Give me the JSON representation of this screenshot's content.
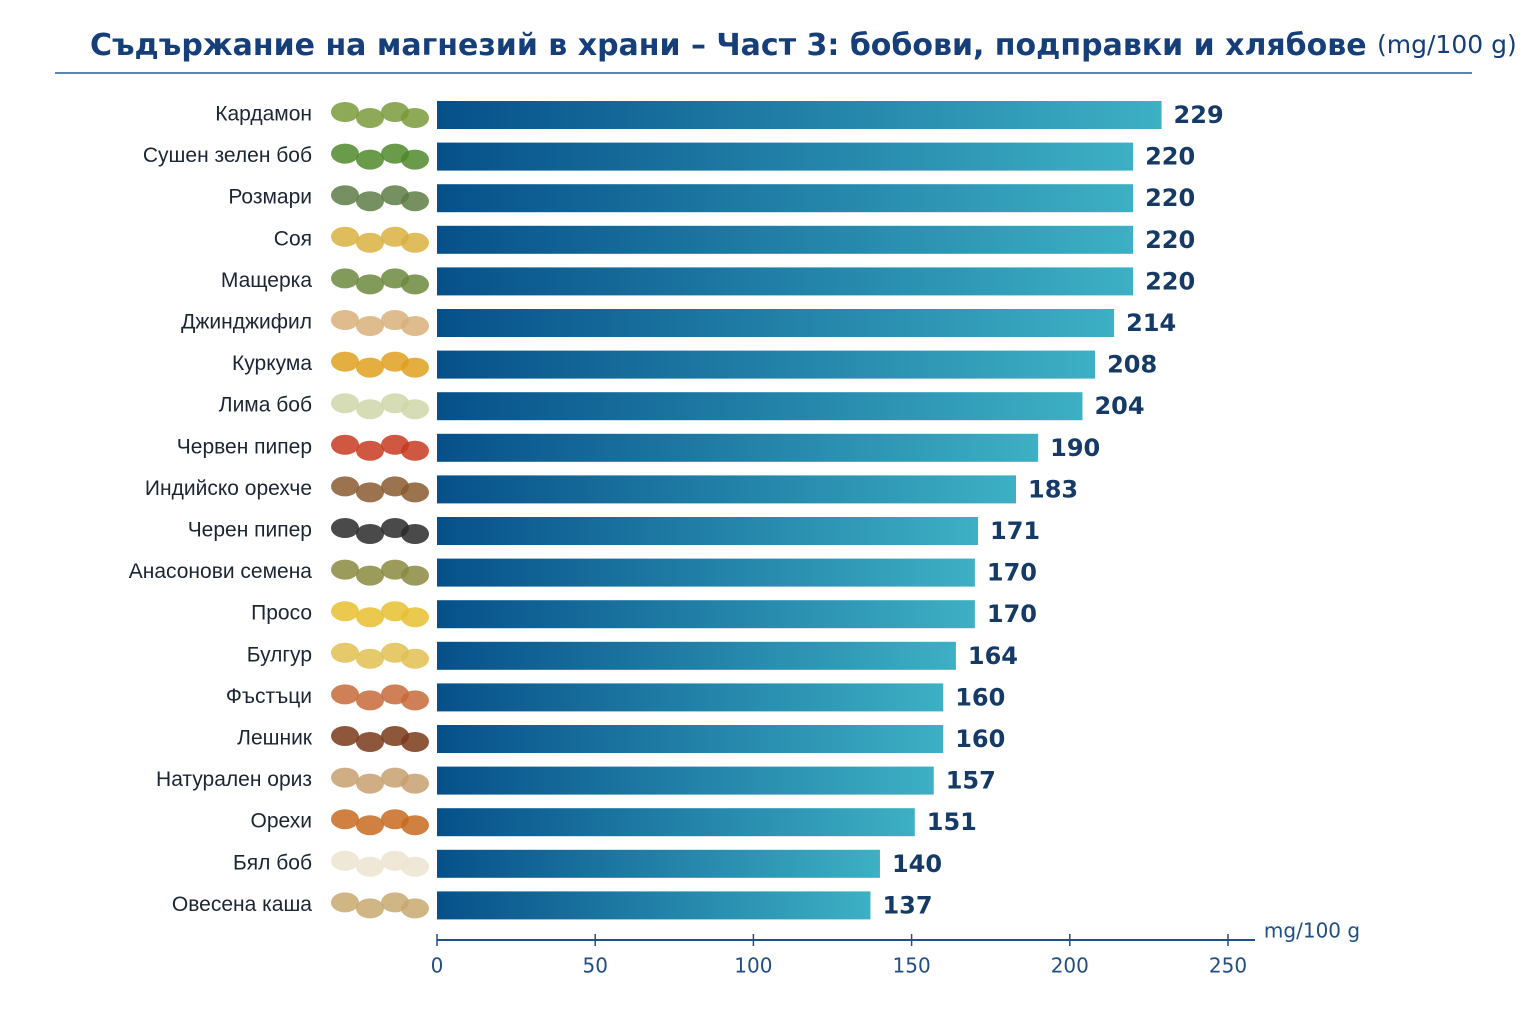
{
  "chart_data": {
    "type": "hbar",
    "title": "Съдържание на магнезий в храни – Част 3: бобови, подправки и хлябове",
    "title_unit": "(mg/100 g)",
    "x_label": "mg/100 g",
    "categories": [
      "Кардамон",
      "Сушен зелен боб",
      "Розмари",
      "Соя",
      "Мащерка",
      "Джинджифил",
      "Куркума",
      "Лима боб",
      "Червен пипер",
      "Индийско орехче",
      "Черен пипер",
      "Анасонови семена",
      "Просо",
      "Булгур",
      "Фъстъци",
      "Лешник",
      "Натурален ориз",
      "Орехи",
      "Бял боб",
      "Овесена каша"
    ],
    "values": [
      229,
      220,
      220,
      220,
      220,
      214,
      208,
      204,
      190,
      183,
      171,
      170,
      170,
      164,
      160,
      160,
      157,
      151,
      140,
      137
    ],
    "colors": [
      "#06508a",
      "#3db0c4"
    ],
    "xlim": [
      0,
      250
    ],
    "xticks": [
      0,
      50,
      100,
      150,
      200,
      250
    ]
  }
}
